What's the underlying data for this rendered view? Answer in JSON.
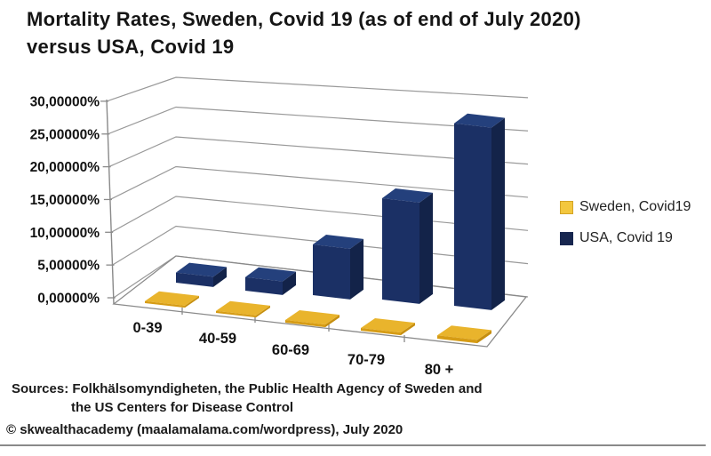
{
  "title": {
    "line1": "Mortality Rates, Sweden, Covid 19 (as of end of July 2020)",
    "line2": "versus USA, Covid 19"
  },
  "chart_data": {
    "type": "bar",
    "style": "3d-column",
    "categories": [
      "0-39",
      "40-59",
      "60-69",
      "70-79",
      "80 +"
    ],
    "series": [
      {
        "name": "Sweden, Covid19",
        "color": "#e9b42c",
        "values": [
          0.3,
          0.3,
          0.4,
          0.4,
          0.5
        ]
      },
      {
        "name": "USA, Covid 19",
        "color": "#1b3065",
        "values": [
          1.5,
          2.0,
          7.5,
          15.0,
          27.0
        ]
      }
    ],
    "values_unit": "%",
    "ylim": [
      0,
      30
    ],
    "ytick_step": 5,
    "ytick_labels": [
      "0,00000%",
      "5,00000%",
      "10,00000%",
      "15,00000%",
      "20,00000%",
      "25,00000%",
      "30,00000%"
    ],
    "grid": true,
    "legend_position": "right"
  },
  "legend": {
    "items": [
      {
        "label": "Sweden, Covid19",
        "color": "#f3c73e"
      },
      {
        "label": "USA, Covid 19",
        "color": "#17264f"
      }
    ]
  },
  "sources": {
    "line1": "Sources: Folkhälsomyndigheten, the Public Health Agency of Sweden and",
    "line2": "the US Centers for Disease Control"
  },
  "copyright": "© skwealthacademy (maalamalama.com/wordpress), July 2020"
}
